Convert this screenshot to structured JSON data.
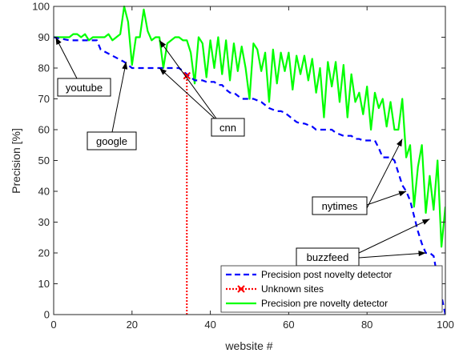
{
  "chart_data": {
    "type": "line",
    "title": "",
    "xlabel": "website #",
    "ylabel": "Precision [%]",
    "xlim": [
      0,
      100
    ],
    "ylim": [
      0,
      100
    ],
    "x_ticks": [
      0,
      20,
      40,
      60,
      80,
      100
    ],
    "y_ticks": [
      0,
      10,
      20,
      30,
      40,
      50,
      60,
      70,
      80,
      90,
      100
    ],
    "grid": false,
    "legend_position": "bottom-right",
    "series": [
      {
        "name": "Precision post novelty detector",
        "color": "#0000ff",
        "style": "dashed",
        "x": [
          0,
          4,
          11,
          12,
          15,
          18,
          20,
          22,
          23,
          25,
          26,
          27,
          28,
          29,
          30,
          31,
          32,
          33,
          34,
          35,
          36,
          37,
          38,
          39,
          40,
          41,
          42,
          43,
          44,
          45,
          46,
          47,
          48,
          49,
          50,
          51,
          52,
          53,
          54,
          55,
          56,
          57,
          58,
          59,
          60,
          61,
          62,
          63,
          64,
          65,
          66,
          67,
          68,
          69,
          70,
          71,
          72,
          73,
          74,
          75,
          76,
          77,
          78,
          79,
          80,
          81,
          82,
          83,
          84,
          85,
          86,
          87,
          88,
          89,
          90,
          91,
          92,
          93,
          94,
          95,
          96,
          97,
          98,
          99,
          100
        ],
        "y": [
          90,
          89,
          89,
          86,
          84,
          82,
          80,
          80,
          80,
          80,
          80,
          80,
          80,
          80,
          80,
          80,
          80,
          79,
          78,
          77,
          76,
          76,
          76,
          75.5,
          75.5,
          75.5,
          74.5,
          74.5,
          73,
          72,
          72,
          71,
          70,
          70,
          70,
          70,
          69.5,
          69,
          68,
          67,
          66.5,
          66,
          66,
          65.5,
          64.5,
          63.5,
          62.5,
          62,
          62,
          61.5,
          61,
          60,
          60,
          60,
          60,
          60,
          59,
          58.5,
          58,
          58,
          58,
          57,
          57,
          56.5,
          56.5,
          56.5,
          56.5,
          54,
          51,
          51,
          51,
          50,
          46,
          42,
          40,
          37,
          32,
          27,
          23,
          20,
          20,
          19,
          12,
          6,
          0
        ]
      },
      {
        "name": "Unknown sites",
        "color": "#ff0000",
        "style": "dotted",
        "marker": "x",
        "x": [
          34,
          34
        ],
        "y": [
          0,
          77.5
        ]
      },
      {
        "name": "Precision pre novelty detector",
        "color": "#00ff00",
        "style": "solid",
        "x": [
          0,
          1,
          2,
          3,
          4,
          5,
          6,
          7,
          8,
          9,
          10,
          11,
          12,
          13,
          14,
          15,
          16,
          17,
          18,
          19,
          20,
          21,
          22,
          23,
          24,
          25,
          26,
          27,
          28,
          29,
          30,
          31,
          32,
          33,
          34,
          35,
          36,
          37,
          38,
          39,
          40,
          41,
          42,
          43,
          44,
          45,
          46,
          47,
          48,
          49,
          50,
          51,
          52,
          53,
          54,
          55,
          56,
          57,
          58,
          59,
          60,
          61,
          62,
          63,
          64,
          65,
          66,
          67,
          68,
          69,
          70,
          71,
          72,
          73,
          74,
          75,
          76,
          77,
          78,
          79,
          80,
          81,
          82,
          83,
          84,
          85,
          86,
          87,
          88,
          89,
          90,
          91,
          92,
          93,
          94,
          95,
          96,
          97,
          98,
          99,
          100
        ],
        "y": [
          90,
          90,
          90,
          90,
          90,
          91,
          91,
          90,
          91,
          89,
          90,
          90,
          90,
          90,
          91,
          89,
          90,
          91,
          100,
          95,
          81,
          90,
          90,
          99,
          92,
          89,
          90,
          90,
          80,
          88,
          89,
          90,
          90,
          89,
          89,
          85,
          75,
          90,
          88,
          77,
          89,
          80,
          90,
          78,
          89,
          76,
          88,
          79,
          87,
          80,
          70,
          88,
          86,
          79,
          85,
          69,
          86,
          75,
          85,
          79,
          85,
          73,
          84,
          78,
          84,
          76,
          83,
          72,
          80,
          64,
          82,
          74,
          82,
          69,
          81,
          64,
          78,
          69,
          72,
          65,
          74,
          60,
          72,
          67,
          70,
          61,
          69,
          60,
          60,
          70,
          51,
          55,
          35,
          48,
          55,
          33,
          45,
          34,
          50,
          22,
          35
        ]
      }
    ],
    "annotations": [
      {
        "text": "youtube",
        "points_to": [
          0.5,
          90
        ]
      },
      {
        "text": "google",
        "points_to": [
          18.5,
          82
        ]
      },
      {
        "text": "cnn",
        "points_to": [
          [
            27,
            89
          ],
          [
            27,
            80
          ]
        ]
      },
      {
        "text": "nytimes",
        "points_to": [
          [
            90,
            40
          ],
          [
            89,
            57
          ]
        ]
      },
      {
        "text": "buzzfeed",
        "points_to": [
          [
            96,
            31
          ],
          [
            95,
            20
          ]
        ]
      }
    ]
  }
}
